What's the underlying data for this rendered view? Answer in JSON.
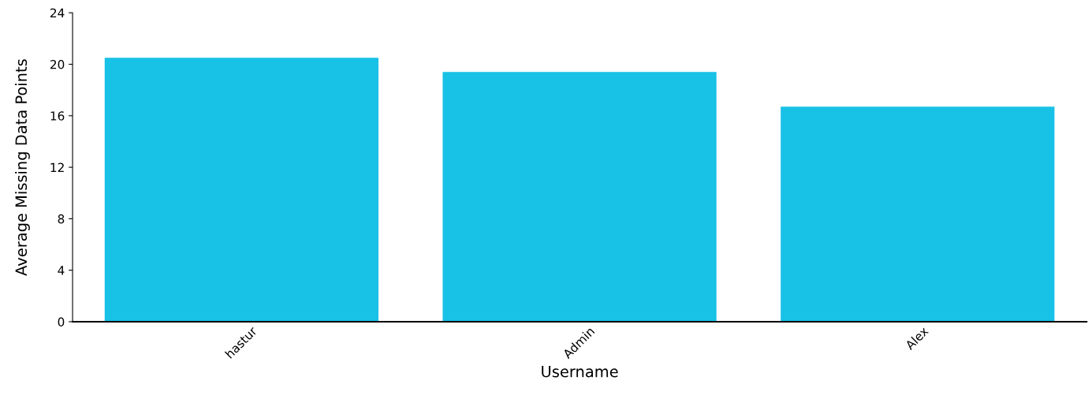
{
  "chart_data": {
    "type": "bar",
    "xlabel": "Username",
    "ylabel": "Average Missing Data Points",
    "categories": [
      "hastur",
      "Admin",
      "Alex"
    ],
    "values": [
      20.5,
      19.4,
      16.7
    ],
    "color": "#18c1e6",
    "ylim": [
      0,
      24
    ],
    "yticks": [
      0,
      4,
      8,
      12,
      16,
      20,
      24
    ],
    "grid": false
  }
}
